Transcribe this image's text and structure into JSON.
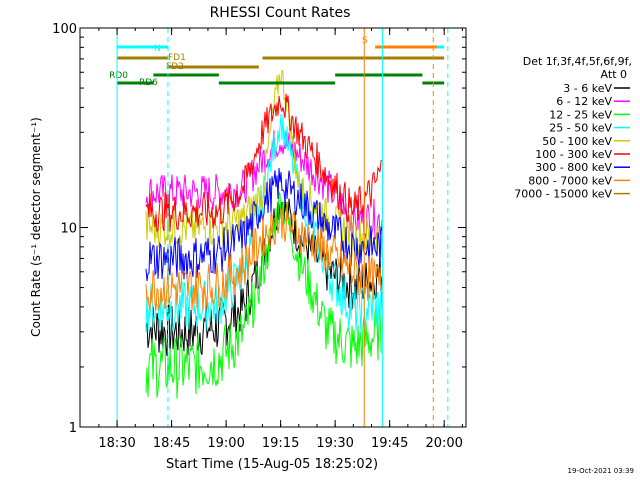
{
  "chart_data": {
    "type": "line",
    "title": "RHESSI Count Rates",
    "xlabel": "Start Time (15-Aug-05 18:25:02)",
    "ylabel": "Count Rate (s⁻¹ detector segment⁻¹)",
    "y_scale": "log",
    "ylim": [
      1,
      100
    ],
    "y_ticks": [
      "1",
      "10",
      "100"
    ],
    "xlim_minutes": [
      18.33,
      20.1
    ],
    "x_ticks": [
      "18:30",
      "18:45",
      "19:00",
      "19:15",
      "19:30",
      "19:45",
      "20:00"
    ],
    "timestamp": "19-Oct-2021 03:39",
    "legend": {
      "position": "right",
      "header": [
        "Det 1f,3f,4f,5f,6f,9f,",
        "Att 0"
      ]
    },
    "series": [
      {
        "name": "3 - 6 keV",
        "color": "#000000",
        "x": [
          "18:38",
          "18:45",
          "18:50",
          "18:58",
          "19:05",
          "19:10",
          "19:15",
          "19:20",
          "19:28",
          "19:35",
          "19:40",
          "19:43"
        ],
        "values": [
          3.2,
          3.0,
          3.0,
          3.2,
          4.0,
          7.0,
          14.0,
          9.0,
          6.0,
          5.0,
          5.5,
          6.0
        ]
      },
      {
        "name": "6 - 12 keV",
        "color": "#ff00ff",
        "x": [
          "18:38",
          "18:45",
          "18:50",
          "18:58",
          "19:05",
          "19:10",
          "19:15",
          "19:20",
          "19:28",
          "19:35",
          "19:40",
          "19:43"
        ],
        "values": [
          15.0,
          15.0,
          15.0,
          15.0,
          16.0,
          22.0,
          28.0,
          23.0,
          16.0,
          11.0,
          11.0,
          11.0
        ]
      },
      {
        "name": "12 - 25 keV",
        "color": "#00ff00",
        "x": [
          "18:38",
          "18:45",
          "18:50",
          "18:58",
          "19:05",
          "19:10",
          "19:15",
          "19:20",
          "19:28",
          "19:35",
          "19:40",
          "19:43"
        ],
        "values": [
          2.0,
          2.0,
          2.0,
          2.2,
          3.0,
          6.0,
          14.0,
          7.0,
          3.0,
          2.5,
          2.8,
          3.0
        ]
      },
      {
        "name": "25 - 50 keV",
        "color": "#00ffff",
        "x": [
          "18:38",
          "18:45",
          "18:50",
          "18:58",
          "19:05",
          "19:10",
          "19:15",
          "19:20",
          "19:28",
          "19:35",
          "19:40",
          "19:43"
        ],
        "values": [
          4.0,
          4.0,
          4.0,
          4.2,
          6.0,
          14.0,
          35.0,
          16.0,
          6.0,
          3.8,
          4.0,
          4.0
        ]
      },
      {
        "name": "50 - 100 keV",
        "color": "#cccc00",
        "x": [
          "18:38",
          "18:45",
          "18:50",
          "18:58",
          "19:05",
          "19:10",
          "19:13",
          "19:15",
          "19:17",
          "19:20",
          "19:28",
          "19:35",
          "19:40",
          "19:43"
        ],
        "values": [
          10.0,
          10.0,
          10.0,
          10.0,
          11.0,
          15.0,
          38.0,
          62.0,
          40.0,
          16.0,
          11.0,
          9.0,
          9.0,
          9.0
        ]
      },
      {
        "name": "100 - 300 keV",
        "color": "#ff0000",
        "x": [
          "18:38",
          "18:45",
          "18:50",
          "18:58",
          "19:05",
          "19:10",
          "19:15",
          "19:20",
          "19:28",
          "19:35",
          "19:40",
          "19:43"
        ],
        "values": [
          12.0,
          12.0,
          12.0,
          12.0,
          16.0,
          30.0,
          45.0,
          30.0,
          18.0,
          12.0,
          15.0,
          20.0
        ]
      },
      {
        "name": "300 - 800 keV",
        "color": "#0000ff",
        "x": [
          "18:38",
          "18:45",
          "18:50",
          "18:58",
          "19:05",
          "19:10",
          "19:15",
          "19:20",
          "19:28",
          "19:35",
          "19:40",
          "19:43"
        ],
        "values": [
          7.0,
          7.0,
          7.0,
          7.5,
          9.0,
          13.0,
          17.0,
          14.0,
          10.0,
          8.0,
          8.0,
          8.0
        ]
      },
      {
        "name": "800 - 7000 keV",
        "color": "#ff8000",
        "x": [
          "18:38",
          "18:45",
          "18:50",
          "18:58",
          "19:05",
          "19:10",
          "19:15",
          "19:20",
          "19:28",
          "19:35",
          "19:40",
          "19:43"
        ],
        "values": [
          5.0,
          5.0,
          5.0,
          5.2,
          6.5,
          9.0,
          11.0,
          9.5,
          7.5,
          6.0,
          5.5,
          5.0
        ]
      },
      {
        "name": "7000 - 15000 keV",
        "color": "#a08000",
        "x": [],
        "values": []
      }
    ],
    "attenuator_states": [
      {
        "label": "FD1",
        "color": "#a08000",
        "row": 1,
        "segments": [
          [
            "18:30",
            "18:44"
          ],
          [
            "19:10",
            "20:00"
          ]
        ]
      },
      {
        "label": "FD2",
        "color": "#a08000",
        "row": 2,
        "segments": [
          [
            "18:44",
            "19:09"
          ]
        ]
      },
      {
        "label": "RD0",
        "color": "#008000",
        "row": 3,
        "segments": [
          [
            "18:40",
            "18:58"
          ],
          [
            "19:30",
            "19:54"
          ]
        ]
      },
      {
        "label": "RD6",
        "color": "#008000",
        "row": 4,
        "segments": [
          [
            "18:30",
            "18:40"
          ],
          [
            "18:58",
            "19:30"
          ],
          [
            "19:54",
            "20:00"
          ]
        ]
      },
      {
        "label": "N",
        "color": "#00ffff",
        "row": 0,
        "segments": [
          [
            "18:30",
            "18:44"
          ],
          [
            "19:56",
            "20:00"
          ]
        ]
      },
      {
        "label": "S",
        "color": "#ff8000",
        "row": 0,
        "segments": [
          [
            "19:41",
            "19:58"
          ]
        ]
      }
    ],
    "markers": [
      {
        "color": "#00ffff",
        "style": "solid",
        "x": "18:30"
      },
      {
        "color": "#00ffff",
        "style": "dashed",
        "x": "18:44"
      },
      {
        "color": "#ff8000",
        "style": "solid",
        "x": "19:38"
      },
      {
        "color": "#00ffff",
        "style": "solid",
        "x": "19:43"
      },
      {
        "color": "#ff8000",
        "style": "dashed",
        "x": "19:57"
      },
      {
        "color": "#00ffff",
        "style": "dashed",
        "x": "20:01"
      }
    ]
  }
}
